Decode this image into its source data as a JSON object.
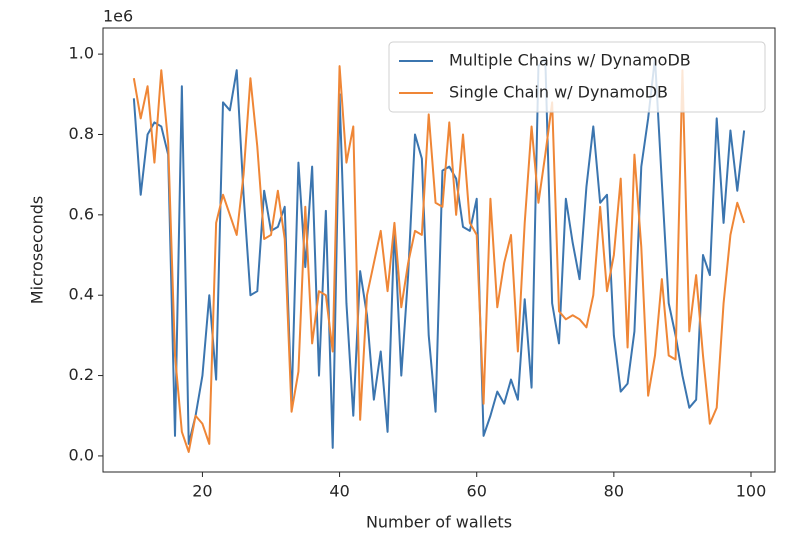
{
  "chart_data": {
    "type": "line",
    "xlabel": "Number of wallets",
    "ylabel": "Microseconds",
    "y_offset_label": "1e6",
    "x": [
      10,
      11,
      12,
      13,
      14,
      15,
      16,
      17,
      18,
      19,
      20,
      21,
      22,
      23,
      24,
      25,
      26,
      27,
      28,
      29,
      30,
      31,
      32,
      33,
      34,
      35,
      36,
      37,
      38,
      39,
      40,
      41,
      42,
      43,
      44,
      45,
      46,
      47,
      48,
      49,
      50,
      51,
      52,
      53,
      54,
      55,
      56,
      57,
      58,
      59,
      60,
      61,
      62,
      63,
      64,
      65,
      66,
      67,
      68,
      69,
      70,
      71,
      72,
      73,
      74,
      75,
      76,
      77,
      78,
      79,
      80,
      81,
      82,
      83,
      84,
      85,
      86,
      87,
      88,
      89,
      90,
      91,
      92,
      93,
      94,
      95,
      96,
      97,
      98,
      99
    ],
    "series": [
      {
        "name": "Multiple Chains w/ DynamoDB",
        "color": "#3b75af",
        "values": [
          0.89,
          0.65,
          0.8,
          0.83,
          0.82,
          0.75,
          0.05,
          0.92,
          0.03,
          0.1,
          0.2,
          0.4,
          0.19,
          0.88,
          0.86,
          0.96,
          0.65,
          0.4,
          0.41,
          0.66,
          0.56,
          0.57,
          0.62,
          0.13,
          0.73,
          0.47,
          0.72,
          0.2,
          0.61,
          0.02,
          0.9,
          0.38,
          0.1,
          0.46,
          0.35,
          0.14,
          0.26,
          0.06,
          0.57,
          0.2,
          0.45,
          0.8,
          0.74,
          0.3,
          0.11,
          0.71,
          0.72,
          0.69,
          0.57,
          0.56,
          0.64,
          0.05,
          0.1,
          0.16,
          0.13,
          0.19,
          0.14,
          0.39,
          0.17,
          0.97,
          0.99,
          0.38,
          0.28,
          0.64,
          0.53,
          0.44,
          0.67,
          0.82,
          0.63,
          0.65,
          0.3,
          0.16,
          0.18,
          0.31,
          0.72,
          0.84,
          0.99,
          0.68,
          0.38,
          0.3,
          0.2,
          0.12,
          0.14,
          0.5,
          0.45,
          0.84,
          0.58,
          0.81,
          0.66,
          0.81
        ]
      },
      {
        "name": "Single Chain w/ DynamoDB",
        "color": "#ef8636",
        "values": [
          0.94,
          0.84,
          0.92,
          0.73,
          0.96,
          0.78,
          0.25,
          0.06,
          0.01,
          0.1,
          0.08,
          0.03,
          0.58,
          0.65,
          0.6,
          0.55,
          0.7,
          0.94,
          0.77,
          0.54,
          0.55,
          0.66,
          0.54,
          0.11,
          0.21,
          0.62,
          0.28,
          0.41,
          0.4,
          0.26,
          0.97,
          0.73,
          0.82,
          0.09,
          0.4,
          0.48,
          0.56,
          0.41,
          0.58,
          0.37,
          0.48,
          0.56,
          0.55,
          0.85,
          0.63,
          0.62,
          0.83,
          0.6,
          0.8,
          0.58,
          0.55,
          0.13,
          0.64,
          0.37,
          0.48,
          0.55,
          0.26,
          0.58,
          0.82,
          0.63,
          0.75,
          0.88,
          0.36,
          0.34,
          0.35,
          0.34,
          0.32,
          0.4,
          0.62,
          0.41,
          0.5,
          0.69,
          0.27,
          0.75,
          0.52,
          0.15,
          0.25,
          0.44,
          0.25,
          0.24,
          0.96,
          0.31,
          0.45,
          0.25,
          0.08,
          0.12,
          0.38,
          0.55,
          0.63,
          0.58
        ]
      }
    ],
    "xlim": [
      5.5,
      103.5
    ],
    "ylim": [
      -0.04,
      1.065
    ],
    "xticks": [
      20,
      40,
      60,
      80,
      100
    ],
    "yticks": [
      {
        "value": 0,
        "label": "0.0"
      },
      0.2,
      0.4,
      0.6,
      0.8,
      {
        "value": 1,
        "label": "1.0"
      }
    ],
    "grid": false,
    "legend": "upper right"
  }
}
